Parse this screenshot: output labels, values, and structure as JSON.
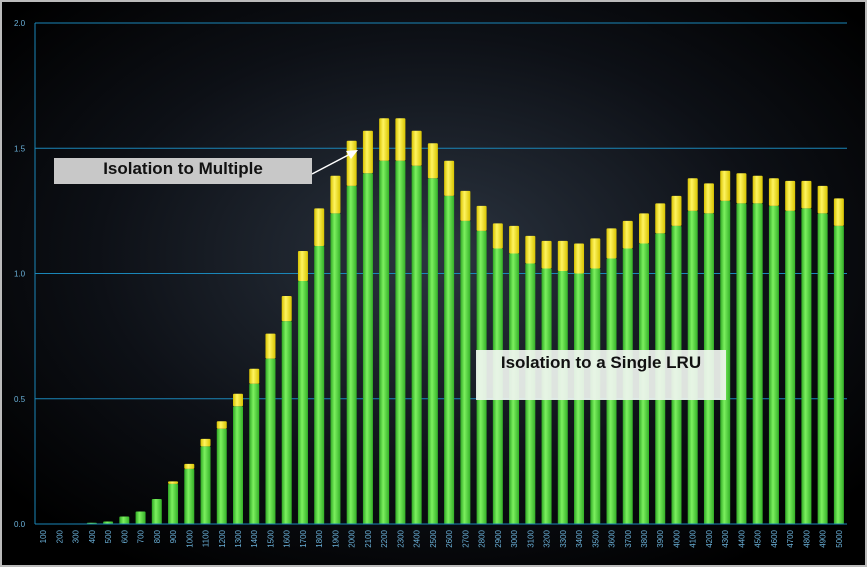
{
  "chart_data": {
    "type": "stacked_bar",
    "categories": [
      "100",
      "200",
      "300",
      "400",
      "500",
      "600",
      "700",
      "800",
      "900",
      "1000",
      "1100",
      "1200",
      "1300",
      "1400",
      "1500",
      "1600",
      "1700",
      "1800",
      "1900",
      "2000",
      "2100",
      "2200",
      "2300",
      "2400",
      "2500",
      "2600",
      "2700",
      "2800",
      "2900",
      "3000",
      "3100",
      "3200",
      "3300",
      "3400",
      "3500",
      "3600",
      "3700",
      "3800",
      "3900",
      "4000",
      "4100",
      "4200",
      "4300",
      "4400",
      "4500",
      "4600",
      "4700",
      "4800",
      "4900",
      "5000"
    ],
    "series": [
      {
        "color": "#4fdc3c",
        "values": [
          0,
          0,
          0,
          0.005,
          0.01,
          0.03,
          0.05,
          0.1,
          0.16,
          0.22,
          0.31,
          0.38,
          0.47,
          0.56,
          0.66,
          0.81,
          0.97,
          1.11,
          1.24,
          1.35,
          1.4,
          1.45,
          1.45,
          1.43,
          1.38,
          1.31,
          1.21,
          1.17,
          1.1,
          1.08,
          1.04,
          1.02,
          1.01,
          1.0,
          1.02,
          1.06,
          1.1,
          1.12,
          1.16,
          1.19,
          1.25,
          1.24,
          1.29,
          1.28,
          1.28,
          1.27,
          1.25,
          1.26,
          1.24,
          1.19
        ]
      },
      {
        "color": "#ffee1a",
        "values": [
          0,
          0,
          0,
          0,
          0,
          0,
          0,
          0,
          0.01,
          0.02,
          0.03,
          0.03,
          0.05,
          0.06,
          0.1,
          0.1,
          0.12,
          0.15,
          0.15,
          0.18,
          0.17,
          0.17,
          0.17,
          0.14,
          0.14,
          0.14,
          0.12,
          0.1,
          0.1,
          0.11,
          0.11,
          0.11,
          0.12,
          0.12,
          0.12,
          0.12,
          0.11,
          0.12,
          0.12,
          0.12,
          0.13,
          0.12,
          0.12,
          0.12,
          0.11,
          0.11,
          0.12,
          0.11,
          0.11,
          0.11
        ]
      }
    ],
    "ylim": [
      0,
      2
    ],
    "yticks": [
      {
        "value": 0,
        "label": "0.0"
      },
      {
        "value": 0.5,
        "label": "0.5"
      },
      {
        "value": 1,
        "label": "1.0"
      },
      {
        "value": 1.5,
        "label": "1.5"
      },
      {
        "value": 2,
        "label": "2.0"
      }
    ],
    "grid": true,
    "annotations": [
      "Isolation to Multiple",
      "Isolation to a Single LRU"
    ]
  }
}
